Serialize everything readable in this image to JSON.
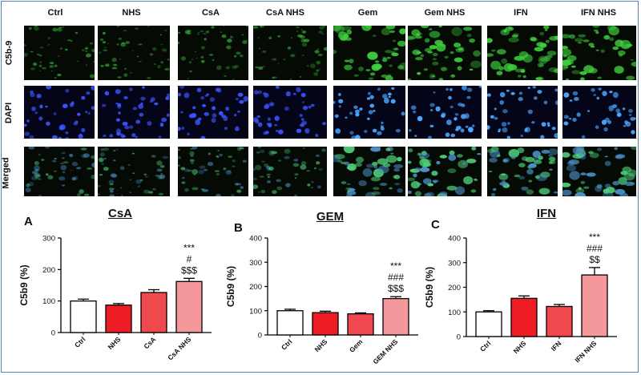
{
  "micrographs": {
    "columns": [
      "Ctrl",
      "NHS",
      "CsA",
      "CsA NHS",
      "Gem",
      "Gem NHS",
      "IFN",
      "IFN NHS"
    ],
    "rows": [
      "C5b-9",
      "DAPI",
      "Merged"
    ]
  },
  "colors": {
    "ctrl_bar": "#ffffff",
    "nhs_bar": "#ee1c24",
    "treatment_bar": "#f0484f",
    "treatment_nhs_bar": "#f4989b",
    "c5b9_stain": "#3fbf3f",
    "dapi_stain": "#3f5fff"
  },
  "chart_data": [
    {
      "type": "bar",
      "panel": "A",
      "title": "CsA",
      "ylabel": "C5b9 (%)",
      "xlabel": "",
      "ylim": [
        0,
        300
      ],
      "yticks": [
        "0",
        "100",
        "200",
        "300"
      ],
      "categories": [
        "Ctrl",
        "NHS",
        "CsA",
        "CsA NHS"
      ],
      "values": [
        100,
        87,
        127,
        162
      ],
      "errors": [
        6,
        5,
        9,
        10
      ],
      "annotations": [
        [],
        [],
        [],
        [
          "***",
          "#",
          "$$$"
        ]
      ]
    },
    {
      "type": "bar",
      "panel": "B",
      "title": "GEM",
      "ylabel": "C5b9 (%)",
      "xlabel": "",
      "ylim": [
        0,
        400
      ],
      "yticks": [
        "0",
        "100",
        "200",
        "300",
        "400"
      ],
      "categories": [
        "Ctrl",
        "NHS",
        "Gem",
        "GEM NHS"
      ],
      "values": [
        100,
        92,
        87,
        150
      ],
      "errors": [
        6,
        6,
        4,
        8
      ],
      "annotations": [
        [],
        [],
        [],
        [
          "***",
          "###",
          "$$$"
        ]
      ]
    },
    {
      "type": "bar",
      "panel": "C",
      "title": "IFN",
      "ylabel": "C5b9 (%)",
      "xlabel": "",
      "ylim": [
        0,
        400
      ],
      "yticks": [
        "0",
        "100",
        "200",
        "300",
        "400"
      ],
      "categories": [
        "Ctrl",
        "NHS",
        "IFN",
        "IFN NHS"
      ],
      "values": [
        100,
        155,
        122,
        250
      ],
      "errors": [
        5,
        10,
        8,
        30
      ],
      "annotations": [
        [],
        [],
        [],
        [
          "***",
          "###",
          "$$"
        ]
      ]
    }
  ]
}
